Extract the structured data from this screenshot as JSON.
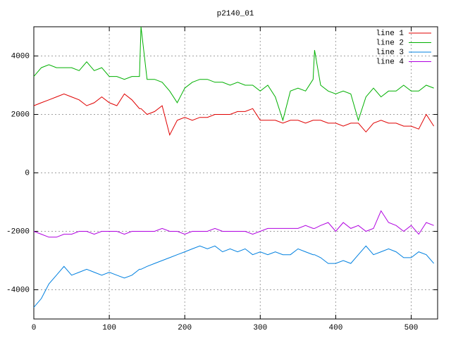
{
  "chart_data": {
    "type": "line",
    "title": "p2140_01",
    "x": [
      0,
      10,
      20,
      30,
      40,
      50,
      60,
      70,
      80,
      90,
      100,
      110,
      120,
      130,
      140,
      142,
      150,
      160,
      170,
      180,
      190,
      200,
      210,
      220,
      230,
      240,
      250,
      260,
      270,
      280,
      290,
      300,
      310,
      320,
      330,
      340,
      350,
      360,
      370,
      372,
      380,
      390,
      400,
      410,
      420,
      430,
      440,
      450,
      460,
      470,
      480,
      490,
      500,
      510,
      520,
      530
    ],
    "series": [
      {
        "name": "line 1",
        "color": "#e00000",
        "values": [
          2300,
          2400,
          2500,
          2600,
          2700,
          2600,
          2500,
          2300,
          2400,
          2600,
          2400,
          2300,
          2700,
          2500,
          2200,
          2200,
          2000,
          2100,
          2300,
          1300,
          1800,
          1900,
          1800,
          1900,
          1900,
          2000,
          2000,
          2000,
          2100,
          2100,
          2200,
          1800,
          1800,
          1800,
          1700,
          1800,
          1800,
          1700,
          1800,
          1800,
          1800,
          1700,
          1700,
          1600,
          1700,
          1700,
          1400,
          1700,
          1800,
          1700,
          1700,
          1600,
          1600,
          1500,
          2000,
          1600
        ]
      },
      {
        "name": "line 2",
        "color": "#00b000",
        "values": [
          3300,
          3600,
          3700,
          3600,
          3600,
          3600,
          3500,
          3800,
          3500,
          3600,
          3300,
          3300,
          3200,
          3300,
          3300,
          5000,
          3200,
          3200,
          3100,
          2800,
          2400,
          2900,
          3100,
          3200,
          3200,
          3100,
          3100,
          3000,
          3100,
          3000,
          3000,
          2800,
          3000,
          2600,
          1800,
          2800,
          2900,
          2800,
          3200,
          4200,
          3000,
          2800,
          2700,
          2800,
          2700,
          1800,
          2600,
          2900,
          2600,
          2800,
          2800,
          3000,
          2800,
          2800,
          3000,
          2900
        ]
      },
      {
        "name": "line 3",
        "color": "#0080e0",
        "values": [
          -4600,
          -4300,
          -3800,
          -3500,
          -3200,
          -3500,
          -3400,
          -3300,
          -3400,
          -3500,
          -3400,
          -3500,
          -3600,
          -3500,
          -3300,
          -3300,
          -3200,
          -3100,
          -3000,
          -2900,
          -2800,
          -2700,
          -2600,
          -2500,
          -2600,
          -2500,
          -2700,
          -2600,
          -2700,
          -2600,
          -2800,
          -2700,
          -2800,
          -2700,
          -2800,
          -2800,
          -2600,
          -2700,
          -2800,
          -2800,
          -2900,
          -3100,
          -3100,
          -3000,
          -3100,
          -2800,
          -2500,
          -2800,
          -2700,
          -2600,
          -2700,
          -2900,
          -2900,
          -2700,
          -2800,
          -3100
        ]
      },
      {
        "name": "line 4",
        "color": "#b000e0",
        "values": [
          -2000,
          -2100,
          -2200,
          -2200,
          -2100,
          -2100,
          -2000,
          -2000,
          -2100,
          -2000,
          -2000,
          -2000,
          -2100,
          -2000,
          -2000,
          -2000,
          -2000,
          -2000,
          -1900,
          -2000,
          -2000,
          -2100,
          -2000,
          -2000,
          -2000,
          -1900,
          -2000,
          -2000,
          -2000,
          -2000,
          -2100,
          -2000,
          -1900,
          -1900,
          -1900,
          -1900,
          -1900,
          -1800,
          -1900,
          -1900,
          -1800,
          -1700,
          -2000,
          -1700,
          -1900,
          -1800,
          -2000,
          -1900,
          -1300,
          -1700,
          -1800,
          -2000,
          -1800,
          -2100,
          -1700,
          -1800
        ]
      }
    ],
    "xlim": [
      0,
      535
    ],
    "xticks": [
      0,
      100,
      200,
      300,
      400,
      500
    ],
    "ylim": [
      -5000,
      5000
    ],
    "yticks": [
      -4000,
      -2000,
      0,
      2000,
      4000
    ],
    "grid": true,
    "legend": "top-right"
  }
}
